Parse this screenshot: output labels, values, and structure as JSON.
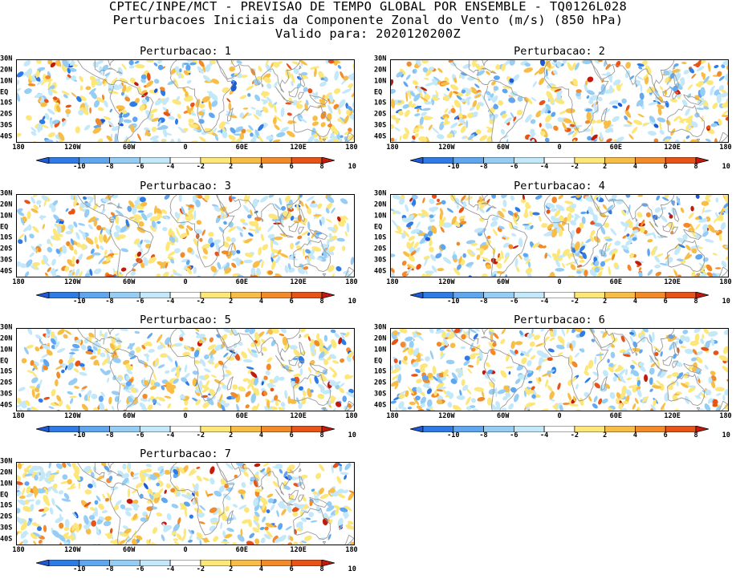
{
  "header": {
    "line1": "CPTEC/INPE/MCT - PREVISAO DE TEMPO GLOBAL POR ENSEMBLE - TQ0126L028",
    "line2": "Perturbacoes Iniciais da Componente Zonal do Vento (m/s) (850 hPa)",
    "line3": "Valido para: 2020120200Z"
  },
  "axes": {
    "lat_labels": [
      "30N",
      "20N",
      "10N",
      "EQ",
      "10S",
      "20S",
      "30S",
      "40S"
    ],
    "lat_values": [
      30,
      20,
      10,
      0,
      -10,
      -20,
      -30,
      -40
    ],
    "lon_labels": [
      "180",
      "120W",
      "60W",
      "0",
      "60E",
      "120E",
      "180"
    ],
    "lon_values": [
      -180,
      -120,
      -60,
      0,
      60,
      120,
      180
    ],
    "lat_range": [
      -45,
      30
    ],
    "lon_range": [
      -180,
      180
    ]
  },
  "colorbar": {
    "labels": [
      "-10",
      "-8",
      "-6",
      "-4",
      "-2",
      "2",
      "4",
      "6",
      "8",
      "10"
    ],
    "colors": [
      "#1c5ad6",
      "#2f7be6",
      "#5fa6f0",
      "#96cdf5",
      "#c3e8fa",
      "#ffffff",
      "#fde67a",
      "#f8bd46",
      "#f28a2a",
      "#e85417",
      "#c31a0c"
    ],
    "units": "m/s"
  },
  "panels": [
    {
      "title": "Perturbacao: 1",
      "seed": 11
    },
    {
      "title": "Perturbacao: 2",
      "seed": 23
    },
    {
      "title": "Perturbacao: 3",
      "seed": 37
    },
    {
      "title": "Perturbacao: 4",
      "seed": 41
    },
    {
      "title": "Perturbacao: 5",
      "seed": 53
    },
    {
      "title": "Perturbacao: 6",
      "seed": 67
    },
    {
      "title": "Perturbacao: 7",
      "seed": 79
    }
  ],
  "map_style": {
    "coast_color": "#9a9a9a",
    "frame_color": "#000000"
  }
}
